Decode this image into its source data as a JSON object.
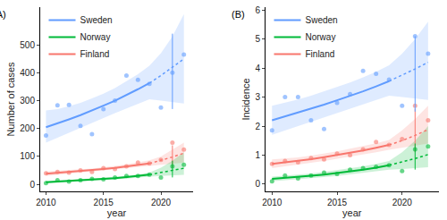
{
  "chart_data": [
    {
      "type": "scatter",
      "title": "(A)",
      "x_label": "year",
      "y_label": "Number of cases",
      "x": [
        2010,
        2011,
        2012,
        2013,
        2014,
        2015,
        2016,
        2017,
        2018,
        2019,
        2020,
        2021,
        2022
      ],
      "xlim": [
        2009.5,
        2022.8
      ],
      "xticks": [
        2010,
        2015,
        2020
      ],
      "ylim": [
        -25,
        635
      ],
      "yticks": [
        0,
        100,
        200,
        300,
        400,
        500
      ],
      "legend": "top-left",
      "series": [
        {
          "name": "Finland",
          "color": "#F8766D",
          "values": [
            40,
            45,
            42,
            50,
            45,
            58,
            55,
            65,
            78,
            75,
            88,
            150,
            125
          ],
          "trend": [
            38,
            41,
            44,
            47,
            51,
            55,
            59,
            64,
            69,
            75,
            null,
            null,
            null
          ],
          "projection": [
            null,
            null,
            null,
            null,
            null,
            null,
            null,
            null,
            null,
            75,
            86,
            98,
            112
          ],
          "band_lower": [
            30,
            34,
            37,
            41,
            45,
            49,
            53,
            57,
            61,
            65,
            68,
            72,
            78
          ],
          "band_upper": [
            46,
            48,
            51,
            54,
            57,
            61,
            66,
            72,
            78,
            86,
            100,
            125,
            150
          ],
          "interval": {
            "x": 2021,
            "lower": 60,
            "upper": 140
          }
        },
        {
          "name": "Norway",
          "color": "#00BA38",
          "values": [
            5,
            15,
            10,
            15,
            20,
            18,
            25,
            30,
            30,
            35,
            25,
            65,
            70
          ],
          "trend": [
            8,
            10,
            12,
            14,
            16,
            19,
            22,
            26,
            30,
            35,
            null,
            null,
            null
          ],
          "projection": [
            null,
            null,
            null,
            null,
            null,
            null,
            null,
            null,
            null,
            35,
            42,
            50,
            58
          ],
          "band_lower": [
            4,
            6,
            8,
            10,
            12,
            15,
            18,
            21,
            25,
            28,
            30,
            32,
            34
          ],
          "band_upper": [
            12,
            14,
            16,
            18,
            21,
            24,
            27,
            31,
            36,
            42,
            60,
            85,
            115
          ],
          "interval": {
            "x": 2021,
            "lower": 25,
            "upper": 85
          }
        },
        {
          "name": "Sweden",
          "color": "#619CFF",
          "values": [
            175,
            283,
            285,
            210,
            180,
            270,
            300,
            390,
            375,
            360,
            275,
            400,
            465
          ],
          "trend": [
            205,
            218,
            233,
            248,
            264,
            282,
            300,
            320,
            341,
            363,
            null,
            null,
            null
          ],
          "projection": [
            null,
            null,
            null,
            null,
            null,
            null,
            null,
            null,
            null,
            363,
            390,
            420,
            450
          ],
          "band_lower": [
            150,
            168,
            185,
            203,
            220,
            238,
            255,
            272,
            290,
            305,
            300,
            295,
            290
          ],
          "band_upper": [
            265,
            270,
            280,
            292,
            308,
            325,
            345,
            370,
            395,
            425,
            470,
            530,
            610
          ],
          "interval": {
            "x": 2021,
            "lower": 270,
            "upper": 540
          }
        }
      ]
    },
    {
      "type": "scatter",
      "title": "(B)",
      "x_label": "year",
      "y_label": "Incidence",
      "x": [
        2010,
        2011,
        2012,
        2013,
        2014,
        2015,
        2016,
        2017,
        2018,
        2019,
        2020,
        2021,
        2022
      ],
      "xlim": [
        2009.5,
        2022.8
      ],
      "xticks": [
        2010,
        2015,
        2020
      ],
      "ylim": [
        -0.25,
        6.1
      ],
      "yticks": [
        0,
        1,
        2,
        3,
        4,
        5,
        6
      ],
      "legend": "top-left",
      "series": [
        {
          "name": "Finland",
          "color": "#F8766D",
          "values": [
            0.7,
            0.8,
            0.75,
            0.9,
            0.85,
            1.05,
            1.0,
            1.2,
            1.45,
            1.35,
            1.55,
            2.7,
            2.2
          ],
          "trend": [
            0.7,
            0.75,
            0.8,
            0.86,
            0.93,
            1.0,
            1.08,
            1.16,
            1.25,
            1.35,
            null,
            null,
            null
          ],
          "projection": [
            null,
            null,
            null,
            null,
            null,
            null,
            null,
            null,
            null,
            1.35,
            1.5,
            1.68,
            1.88
          ],
          "band_lower": [
            0.55,
            0.62,
            0.68,
            0.74,
            0.8,
            0.87,
            0.94,
            1.02,
            1.1,
            1.18,
            1.25,
            1.32,
            1.4
          ],
          "band_upper": [
            0.85,
            0.88,
            0.92,
            0.98,
            1.05,
            1.13,
            1.22,
            1.31,
            1.41,
            1.52,
            1.85,
            2.25,
            2.7
          ],
          "interval": {
            "x": 2021,
            "lower": 1.1,
            "upper": 2.6
          }
        },
        {
          "name": "Norway",
          "color": "#00BA38",
          "values": [
            0.1,
            0.3,
            0.2,
            0.3,
            0.4,
            0.35,
            0.5,
            0.55,
            0.6,
            0.65,
            0.45,
            1.2,
            1.3
          ],
          "trend": [
            0.18,
            0.21,
            0.25,
            0.29,
            0.33,
            0.38,
            0.44,
            0.5,
            0.57,
            0.65,
            null,
            null,
            null
          ],
          "projection": [
            null,
            null,
            null,
            null,
            null,
            null,
            null,
            null,
            null,
            0.65,
            0.76,
            0.88,
            1.02
          ],
          "band_lower": [
            0.1,
            0.13,
            0.16,
            0.2,
            0.24,
            0.28,
            0.33,
            0.38,
            0.44,
            0.5,
            0.52,
            0.55,
            0.58
          ],
          "band_upper": [
            0.26,
            0.29,
            0.33,
            0.37,
            0.42,
            0.48,
            0.54,
            0.61,
            0.7,
            0.8,
            1.1,
            1.5,
            2.0
          ],
          "interval": {
            "x": 2021,
            "lower": 0.5,
            "upper": 1.4
          }
        },
        {
          "name": "Sweden",
          "color": "#619CFF",
          "values": [
            1.85,
            3.0,
            3.0,
            2.2,
            1.9,
            2.8,
            3.1,
            3.9,
            3.8,
            3.6,
            2.7,
            5.1,
            4.5
          ],
          "trend": [
            2.2,
            2.33,
            2.46,
            2.6,
            2.74,
            2.89,
            3.04,
            3.2,
            3.37,
            3.55,
            null,
            null,
            null
          ],
          "projection": [
            null,
            null,
            null,
            null,
            null,
            null,
            null,
            null,
            null,
            3.55,
            3.75,
            3.97,
            4.2
          ],
          "band_lower": [
            1.7,
            1.85,
            2.0,
            2.15,
            2.3,
            2.45,
            2.6,
            2.75,
            2.9,
            3.05,
            3.0,
            2.95,
            2.9
          ],
          "band_upper": [
            2.7,
            2.8,
            2.92,
            3.05,
            3.2,
            3.35,
            3.5,
            3.68,
            3.87,
            4.1,
            4.5,
            5.0,
            5.6
          ],
          "interval": {
            "x": 2021,
            "lower": 2.5,
            "upper": 5.1
          }
        }
      ]
    }
  ]
}
